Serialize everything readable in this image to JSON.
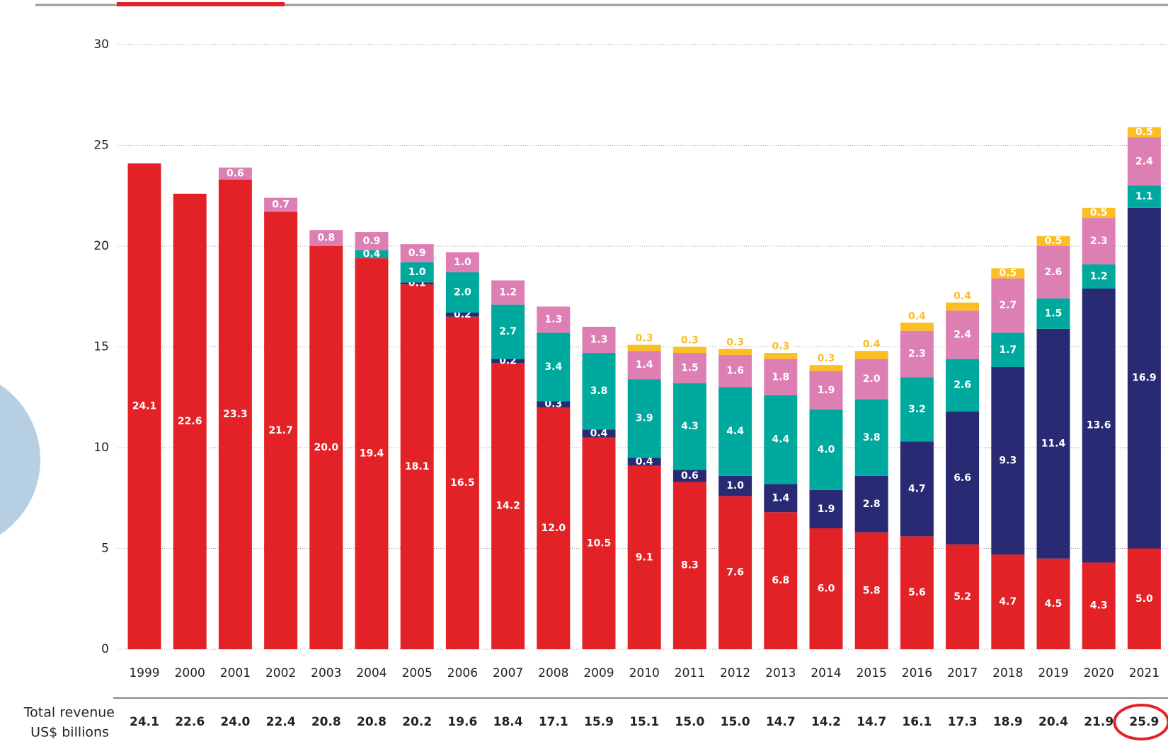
{
  "chart_data": {
    "type": "stacked-bar",
    "categories": [
      "1999",
      "2000",
      "2001",
      "2002",
      "2003",
      "2004",
      "2005",
      "2006",
      "2007",
      "2008",
      "2009",
      "2010",
      "2011",
      "2012",
      "2013",
      "2014",
      "2015",
      "2016",
      "2017",
      "2018",
      "2019",
      "2020",
      "2021"
    ],
    "series": [
      {
        "color": "#e32227",
        "values": [
          24.1,
          22.6,
          23.3,
          21.7,
          20.0,
          19.4,
          18.1,
          16.5,
          14.2,
          12.0,
          10.5,
          9.1,
          8.3,
          7.6,
          6.8,
          6.0,
          5.8,
          5.6,
          5.2,
          4.7,
          4.5,
          4.3,
          5.0
        ],
        "value_labels": [
          "24.1",
          "22.6",
          "23.3",
          "21.7",
          "20.0",
          "19.4",
          "18.1",
          "16.5",
          "14.2",
          "12.0",
          "10.5",
          "9.1",
          "8.3",
          "7.6",
          "6.8",
          "6.0",
          "5.8",
          "5.6",
          "5.2",
          "4.7",
          "4.5",
          "4.3",
          "5.0"
        ]
      },
      {
        "color": "#282a74",
        "values": [
          null,
          null,
          null,
          null,
          null,
          null,
          0.1,
          0.2,
          0.2,
          0.3,
          0.4,
          0.4,
          0.6,
          1.0,
          1.4,
          1.9,
          2.8,
          4.7,
          6.6,
          9.3,
          11.4,
          13.6,
          16.9
        ],
        "value_labels": [
          null,
          null,
          null,
          null,
          null,
          null,
          "0.1",
          "0.2",
          "0.2",
          "0.3",
          "0.4",
          "0.4",
          "0.6",
          "1.0",
          "1.4",
          "1.9",
          "2.8",
          "4.7",
          "6.6",
          "9.3",
          "11.4",
          "13.6",
          "16.9"
        ]
      },
      {
        "color": "#00a99d",
        "values": [
          null,
          null,
          null,
          null,
          null,
          0.4,
          1.0,
          2.0,
          2.7,
          3.4,
          3.8,
          3.9,
          4.3,
          4.4,
          4.4,
          4.0,
          3.8,
          3.2,
          2.6,
          1.7,
          1.5,
          1.2,
          1.1
        ],
        "value_labels": [
          null,
          null,
          null,
          null,
          null,
          "0.4",
          "1.0",
          "2.0",
          "2.7",
          "3.4",
          "3.8",
          "3.9",
          "4.3",
          "4.4",
          "4.4",
          "4.0",
          "3.8",
          "3.2",
          "2.6",
          "1.7",
          "1.5",
          "1.2",
          "1.1"
        ]
      },
      {
        "color": "#de7fb4",
        "values": [
          null,
          null,
          0.6,
          0.7,
          0.8,
          0.9,
          0.9,
          1.0,
          1.2,
          1.3,
          1.3,
          1.4,
          1.5,
          1.6,
          1.8,
          1.9,
          2.0,
          2.3,
          2.4,
          2.7,
          2.6,
          2.3,
          2.4
        ],
        "value_labels": [
          null,
          null,
          "0.6",
          "0.7",
          "0.8",
          "0.9",
          "0.9",
          "1.0",
          "1.2",
          "1.3",
          "1.3",
          "1.4",
          "1.5",
          "1.6",
          "1.8",
          "1.9",
          "2.0",
          "2.3",
          "2.4",
          "2.7",
          "2.6",
          "2.3",
          "2.4"
        ]
      },
      {
        "color": "#fbbf24",
        "values": [
          null,
          null,
          null,
          null,
          null,
          null,
          null,
          null,
          null,
          null,
          null,
          0.3,
          0.3,
          0.3,
          0.3,
          0.3,
          0.4,
          0.4,
          0.4,
          0.5,
          0.5,
          0.5,
          0.5
        ],
        "value_labels": [
          null,
          null,
          null,
          null,
          null,
          null,
          null,
          null,
          null,
          null,
          null,
          "0.3",
          "0.3",
          "0.3",
          "0.3",
          "0.3",
          "0.4",
          "0.4",
          "0.4",
          "0.5",
          "0.5",
          "0.5",
          "0.5"
        ]
      }
    ],
    "ylim": [
      0,
      30
    ],
    "yticks": [
      0,
      5,
      10,
      15,
      20,
      25,
      30
    ],
    "grid": true,
    "totals_label": [
      "Total revenue",
      "US$ billions"
    ],
    "totals": [
      "24.1",
      "22.6",
      "24.0",
      "22.4",
      "20.8",
      "20.8",
      "20.2",
      "19.6",
      "18.4",
      "17.1",
      "15.9",
      "15.1",
      "15.0",
      "15.0",
      "14.7",
      "14.2",
      "14.7",
      "16.1",
      "17.3",
      "18.9",
      "20.4",
      "21.9",
      "25.9"
    ]
  }
}
